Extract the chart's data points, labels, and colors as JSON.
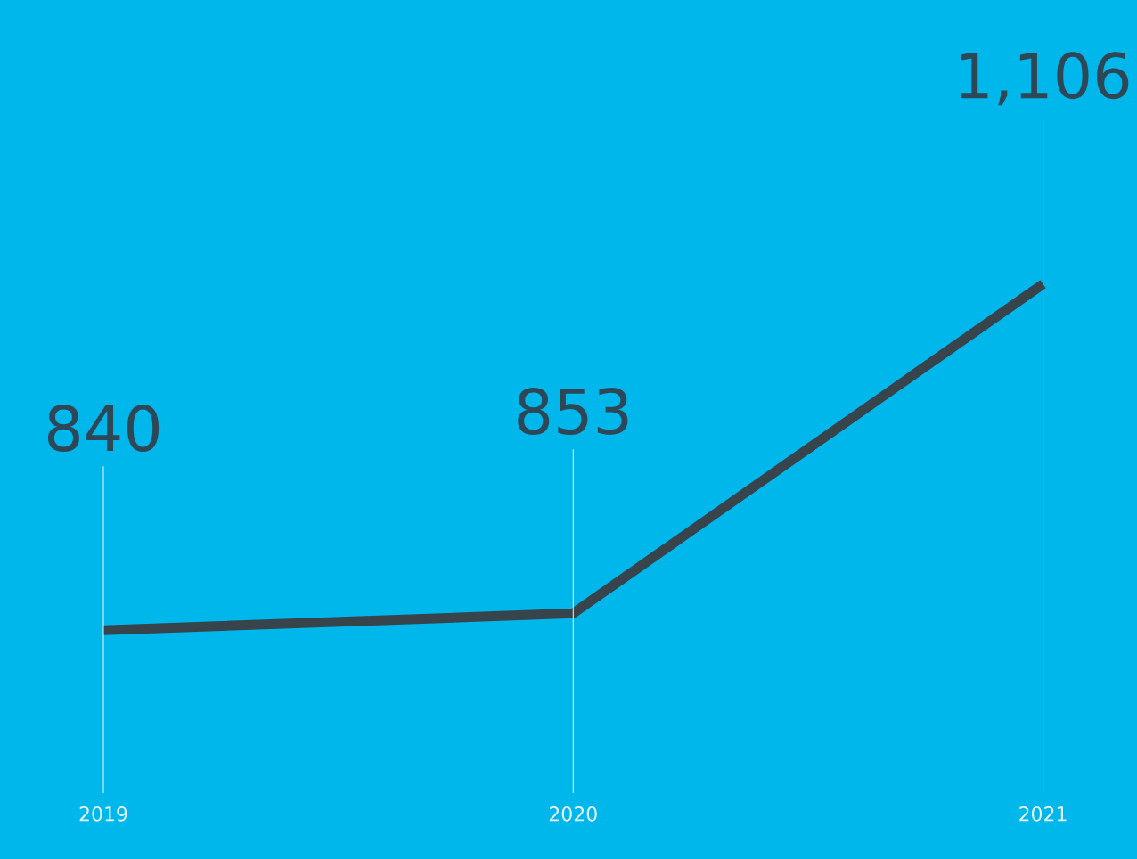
{
  "chart_data": {
    "type": "line",
    "categories": [
      "2019",
      "2020",
      "2021"
    ],
    "values": [
      840,
      853,
      1106
    ],
    "value_labels": [
      "840",
      "853",
      "1,106"
    ],
    "color": "#37444c",
    "grid": "x"
  }
}
